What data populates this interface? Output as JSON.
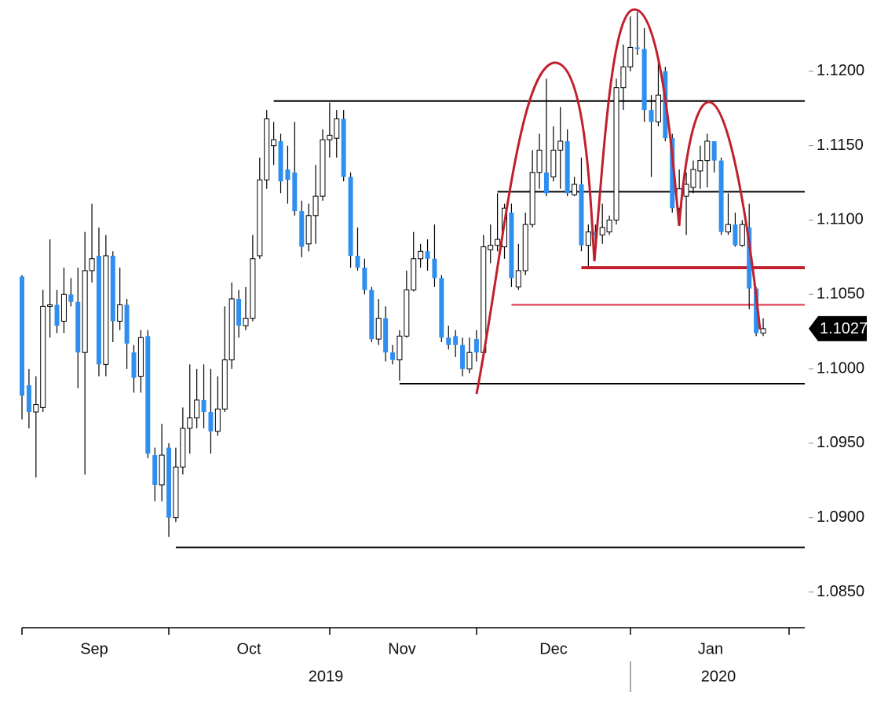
{
  "chart_data": {
    "type": "candlestick",
    "up_color": "#ffffff",
    "down_color": "#2f8ff0",
    "wick_color": "#000000",
    "open": [
      1.1062,
      1.0989,
      1.0971,
      1.0974,
      1.1042,
      1.1043,
      1.1032,
      1.105,
      1.1045,
      1.1011,
      1.1066,
      1.1076,
      1.1003,
      1.1076,
      1.1032,
      1.1043,
      1.1011,
      1.0995,
      1.1022,
      1.0942,
      1.0922,
      1.0947,
      1.09,
      1.0934,
      1.096,
      1.0967,
      1.0979,
      1.0971,
      1.0958,
      1.0973,
      1.1006,
      1.1047,
      1.1029,
      1.1034,
      1.1076,
      1.1127,
      1.115,
      1.1153,
      1.1134,
      1.1132,
      1.1106,
      1.1084,
      1.1103,
      1.1116,
      1.1154,
      1.1155,
      1.1168,
      1.1129,
      1.1076,
      1.1068,
      1.1053,
      1.102,
      1.1034,
      1.1011,
      1.1006,
      1.1022,
      1.1053,
      1.1074,
      1.1079,
      1.1074,
      1.1061,
      1.1021,
      1.1022,
      1.1016,
      1.1,
      1.102,
      1.1011,
      1.108,
      1.1083,
      1.1082,
      1.1105,
      1.1055,
      1.1066,
      1.1097,
      1.1132,
      1.1132,
      1.1129,
      1.1147,
      1.1153,
      1.1117,
      1.1124,
      1.1083,
      1.1092,
      1.109,
      1.1092,
      1.11,
      1.1189,
      1.1203,
      1.1216,
      1.1215,
      1.1174,
      1.1166,
      1.12,
      1.1155,
      1.1108,
      1.1116,
      1.1122,
      1.1133,
      1.114,
      1.1153,
      1.114,
      1.1092,
      1.1097,
      1.1083,
      1.1095,
      1.1054,
      1.1024
    ],
    "high": [
      1.1063,
      1.1,
      1.0995,
      1.1053,
      1.1087,
      1.1053,
      1.1068,
      1.1061,
      1.1068,
      1.1092,
      1.1111,
      1.1095,
      1.109,
      1.1079,
      1.1068,
      1.1047,
      1.1016,
      1.1026,
      1.1026,
      1.0947,
      1.0963,
      1.095,
      1.0947,
      1.0974,
      1.1003,
      1.1,
      1.1003,
      1.1,
      1.0995,
      1.1042,
      1.1058,
      1.1053,
      1.1055,
      1.109,
      1.1142,
      1.1174,
      1.1166,
      1.1158,
      1.115,
      1.1166,
      1.1113,
      1.1111,
      1.1137,
      1.1161,
      1.1179,
      1.1174,
      1.1174,
      1.1132,
      1.1095,
      1.1074,
      1.1055,
      1.1047,
      1.1042,
      1.1016,
      1.1026,
      1.1066,
      1.1092,
      1.1084,
      1.1087,
      1.1097,
      1.1063,
      1.1029,
      1.1026,
      1.1021,
      1.1021,
      1.1026,
      1.109,
      1.1097,
      1.1118,
      1.1111,
      1.1111,
      1.1084,
      1.1105,
      1.1147,
      1.1158,
      1.1195,
      1.1163,
      1.1176,
      1.1161,
      1.1129,
      1.1142,
      1.1097,
      1.1097,
      1.1111,
      1.1103,
      1.1195,
      1.1218,
      1.1237,
      1.124,
      1.1229,
      1.1184,
      1.1208,
      1.1203,
      1.1158,
      1.1134,
      1.1132,
      1.114,
      1.115,
      1.1158,
      1.1153,
      1.1142,
      1.1118,
      1.1105,
      1.11,
      1.1111,
      1.1055,
      1.1034
    ],
    "low": [
      1.0966,
      1.096,
      1.0927,
      1.0971,
      1.1021,
      1.1024,
      1.1024,
      1.1042,
      1.0987,
      1.0929,
      1.1058,
      1.0995,
      1.0995,
      1.1018,
      1.1026,
      1.1,
      1.0984,
      1.0984,
      1.094,
      1.0911,
      1.0911,
      1.0887,
      1.0897,
      1.0929,
      1.0943,
      1.096,
      1.096,
      1.0943,
      1.0955,
      1.0971,
      1.1,
      1.1021,
      1.1026,
      1.1032,
      1.1074,
      1.1121,
      1.1137,
      1.1118,
      1.1111,
      1.1103,
      1.1075,
      1.1079,
      1.1084,
      1.1113,
      1.1142,
      1.1142,
      1.1126,
      1.1068,
      1.1066,
      1.105,
      1.1018,
      1.1016,
      1.1005,
      1.1003,
      1.0992,
      1.1021,
      1.1052,
      1.1068,
      1.1066,
      1.1055,
      1.1018,
      1.1013,
      1.1008,
      1.0995,
      1.0997,
      1.1005,
      1.1008,
      1.1071,
      1.1079,
      1.1074,
      1.1055,
      1.1053,
      1.1063,
      1.1095,
      1.1121,
      1.1116,
      1.1126,
      1.1121,
      1.1116,
      1.1116,
      1.1079,
      1.1069,
      1.1074,
      1.1084,
      1.109,
      1.1097,
      1.1174,
      1.12,
      1.1211,
      1.1166,
      1.1129,
      1.1163,
      1.1153,
      1.1105,
      1.1105,
      1.109,
      1.1118,
      1.1121,
      1.1122,
      1.1132,
      1.109,
      1.109,
      1.1082,
      1.1082,
      1.104,
      1.1022,
      1.1022
    ],
    "close": [
      1.0982,
      1.0971,
      1.0976,
      1.1042,
      1.1043,
      1.1029,
      1.105,
      1.1045,
      1.1011,
      1.1066,
      1.1074,
      1.1003,
      1.1076,
      1.1032,
      1.1043,
      1.1017,
      1.0994,
      1.1021,
      1.0943,
      1.0922,
      1.0942,
      1.09,
      1.0934,
      1.096,
      1.0967,
      1.0979,
      1.0971,
      1.0958,
      1.0973,
      1.1006,
      1.1047,
      1.1029,
      1.1034,
      1.1074,
      1.1127,
      1.1168,
      1.1154,
      1.1126,
      1.1127,
      1.1106,
      1.1082,
      1.1103,
      1.1116,
      1.1154,
      1.1157,
      1.1168,
      1.1129,
      1.1076,
      1.1068,
      1.1053,
      1.102,
      1.1034,
      1.1011,
      1.1006,
      1.1022,
      1.1053,
      1.1074,
      1.1079,
      1.1074,
      1.1061,
      1.1021,
      1.1016,
      1.1016,
      1.1,
      1.1011,
      1.1011,
      1.1082,
      1.1083,
      1.1087,
      1.1108,
      1.1061,
      1.1066,
      1.1097,
      1.1132,
      1.1147,
      1.1118,
      1.1147,
      1.1153,
      1.1118,
      1.1124,
      1.1083,
      1.1092,
      1.109,
      1.1095,
      1.11,
      1.1189,
      1.1203,
      1.1216,
      1.1215,
      1.1174,
      1.1166,
      1.1184,
      1.1155,
      1.1108,
      1.1121,
      1.1124,
      1.1134,
      1.114,
      1.1153,
      1.114,
      1.1092,
      1.1097,
      1.1083,
      1.1097,
      1.1054,
      1.1024,
      1.1027
    ],
    "ylim": [
      1.0826,
      1.124
    ],
    "yticks": [
      {
        "value": 1.085,
        "label": "1.0850"
      },
      {
        "value": 1.09,
        "label": "1.0900"
      },
      {
        "value": 1.095,
        "label": "1.0950"
      },
      {
        "value": 1.1,
        "label": "1.1000"
      },
      {
        "value": 1.105,
        "label": "1.1050"
      },
      {
        "value": 1.11,
        "label": "1.1100"
      },
      {
        "value": 1.115,
        "label": "1.1150"
      },
      {
        "value": 1.12,
        "label": "1.1200"
      }
    ],
    "months": [
      "Sep",
      "Oct",
      "Nov",
      "Dec",
      "Jan"
    ],
    "years": [
      "2019",
      "2020"
    ],
    "last_price": 1.1027,
    "levels": [
      {
        "value": 1.118,
        "from": 36,
        "color": "#000000"
      },
      {
        "value": 1.1119,
        "from": 68,
        "color": "#000000"
      },
      {
        "value": 1.099,
        "from": 54,
        "color": "#000000"
      },
      {
        "value": 1.088,
        "from": 22,
        "color": "#000000"
      },
      {
        "value": 1.1068,
        "from": 80,
        "color": "#c0202e",
        "weight": "bold"
      },
      {
        "value": 1.1043,
        "from": 70,
        "color": "#e0304a"
      }
    ]
  }
}
